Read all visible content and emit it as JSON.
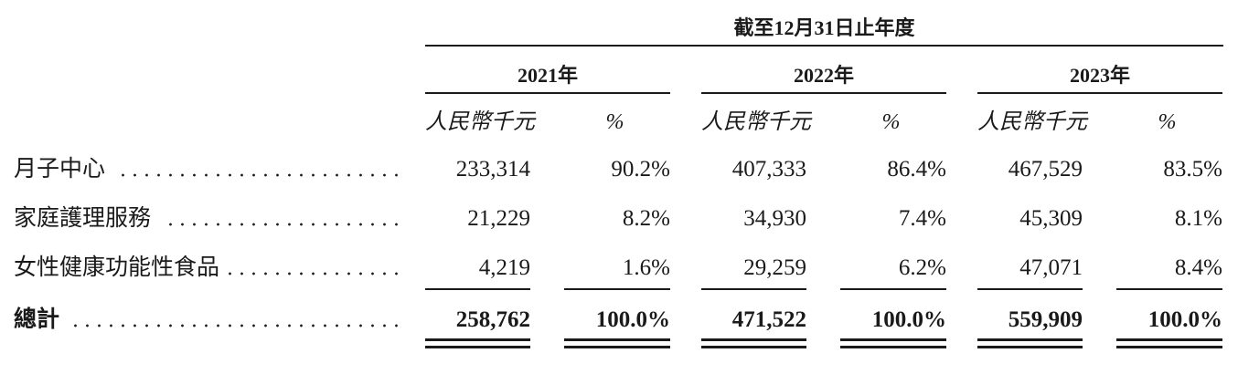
{
  "table": {
    "header": "截至12月31日止年度",
    "years": [
      "2021年",
      "2022年",
      "2023年"
    ],
    "units": [
      "人民幣千元",
      "%"
    ],
    "rows": [
      {
        "label": "月子中心",
        "cells": [
          "233,314",
          "90.2%",
          "407,333",
          "86.4%",
          "467,529",
          "83.5%"
        ]
      },
      {
        "label": "家庭護理服務",
        "cells": [
          "21,229",
          "8.2%",
          "34,930",
          "7.4%",
          "45,309",
          "8.1%"
        ]
      },
      {
        "label": "女性健康功能性食品",
        "cells": [
          "4,219",
          "1.6%",
          "29,259",
          "6.2%",
          "47,071",
          "8.4%"
        ]
      }
    ],
    "total": {
      "label": "總計",
      "cells": [
        "258,762",
        "100.0%",
        "471,522",
        "100.0%",
        "559,909",
        "100.0%"
      ]
    }
  }
}
